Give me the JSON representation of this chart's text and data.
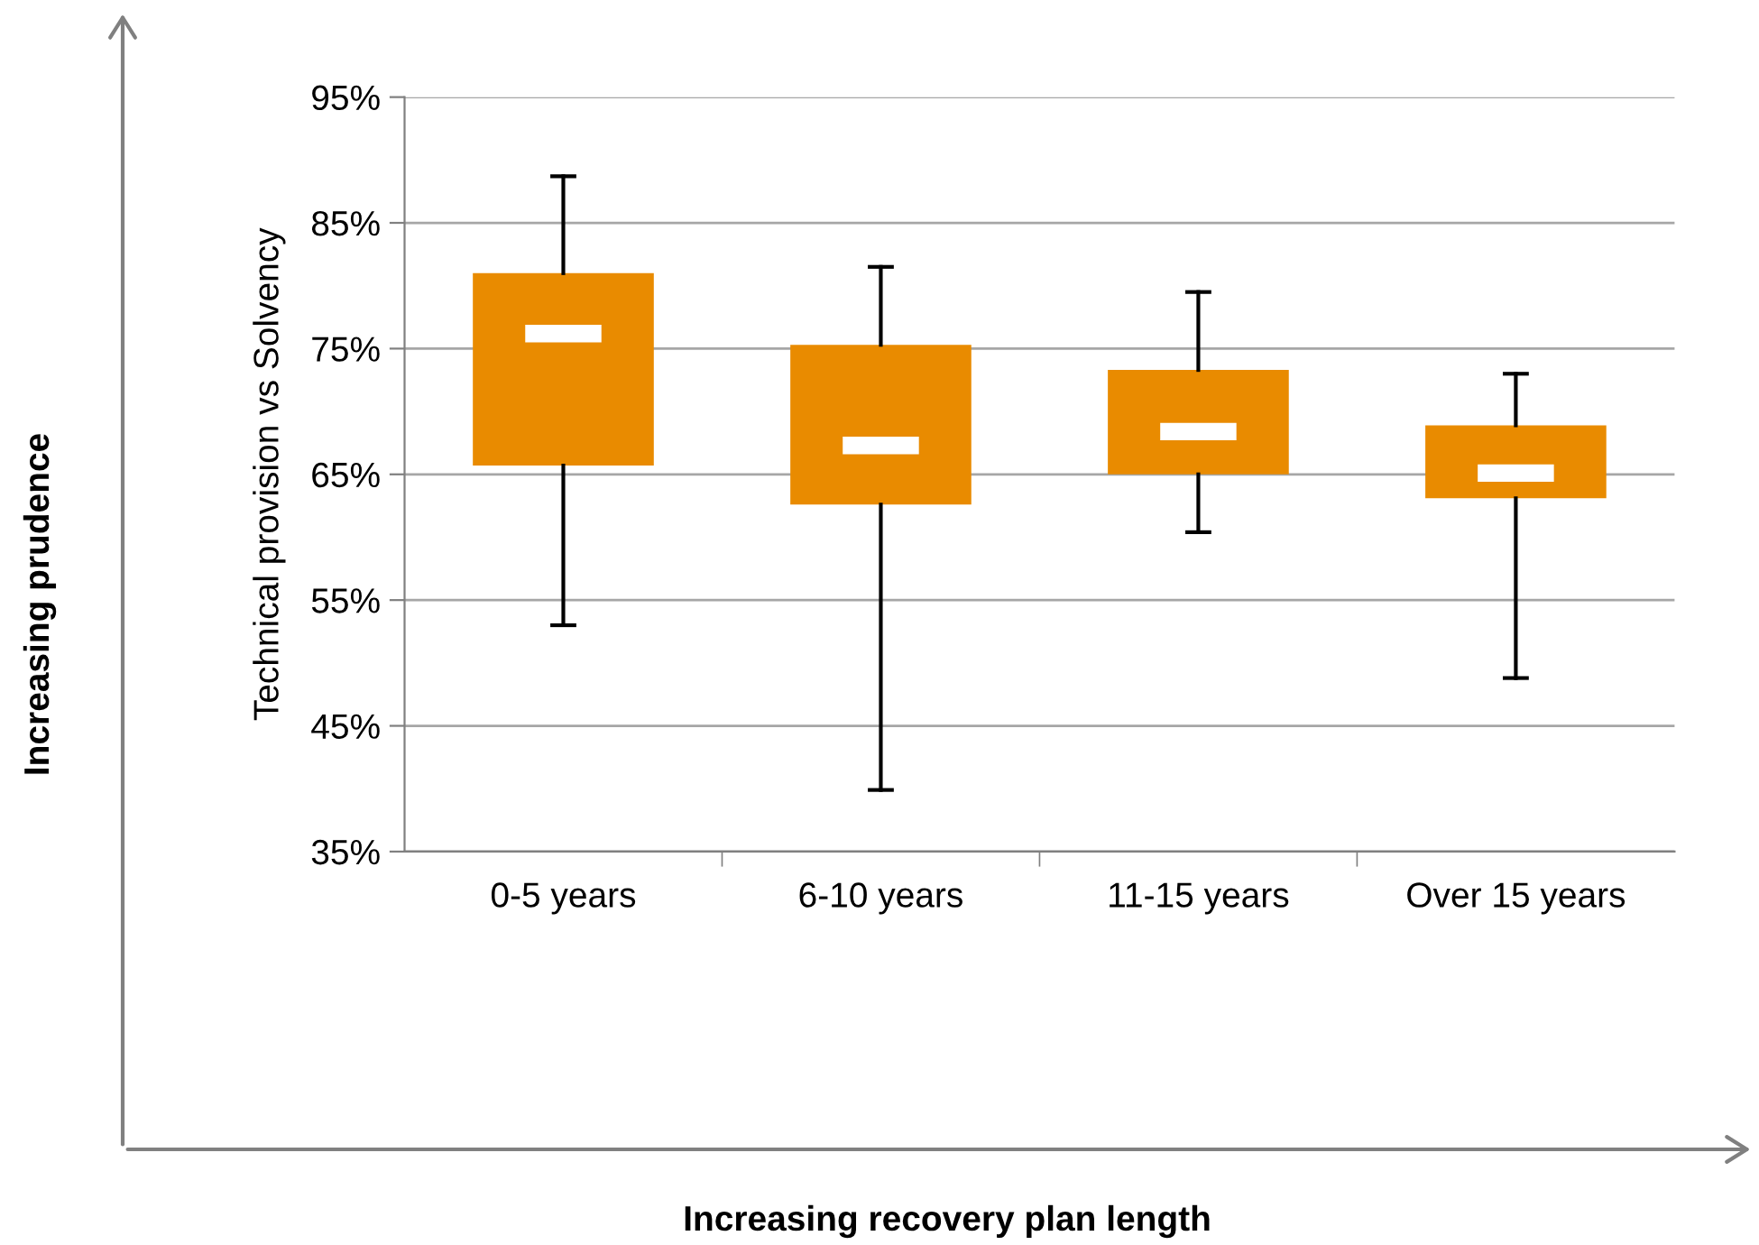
{
  "chart_data": {
    "type": "box",
    "ylabel": "Technical provision vs Solvency",
    "categories": [
      "0-5 years",
      "6-10 years",
      "11-15 years",
      "Over 15 years"
    ],
    "color": "#e98b00",
    "boxes": [
      {
        "low": 53,
        "q1": 65.7,
        "median": 76.2,
        "q3": 81,
        "high": 88.7
      },
      {
        "low": 39.9,
        "q1": 62.6,
        "median": 67.3,
        "q3": 75.3,
        "high": 81.5
      },
      {
        "low": 60.4,
        "q1": 65,
        "median": 68.4,
        "q3": 73.3,
        "high": 79.5
      },
      {
        "low": 48.8,
        "q1": 63.1,
        "median": 65.1,
        "q3": 68.9,
        "high": 73
      }
    ],
    "ylim": [
      35,
      95
    ],
    "yticks": [
      {
        "value": 35,
        "label": "35%"
      },
      {
        "value": 45,
        "label": "45%"
      },
      {
        "value": 55,
        "label": "55%"
      },
      {
        "value": 65,
        "label": "65%"
      },
      {
        "value": 75,
        "label": "75%"
      },
      {
        "value": 85,
        "label": "85%"
      },
      {
        "value": 95,
        "label": "95%"
      }
    ],
    "grid": "y",
    "annotations": [
      "Increasing prudence",
      "Increasing recovery plan length"
    ]
  }
}
